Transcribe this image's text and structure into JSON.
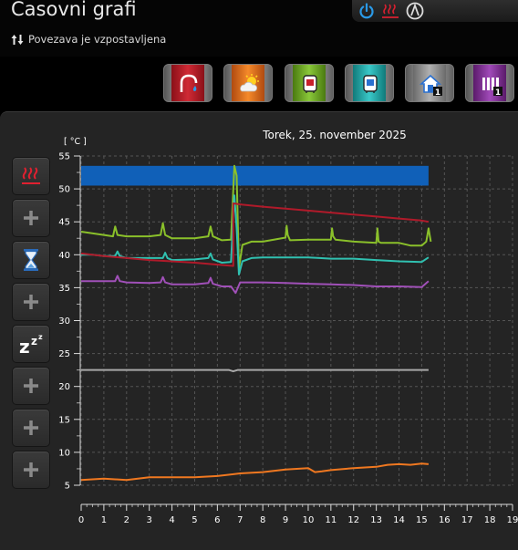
{
  "header": {
    "title": "Časovni grafi",
    "status_text": "Povezava je vzpostavljena"
  },
  "topbar": {
    "icons": [
      "power-icon",
      "heating-icon",
      "mode-icon"
    ]
  },
  "mode_buttons": [
    {
      "name": "dhw-button",
      "icon": "tap-icon",
      "color": "#c8202a"
    },
    {
      "name": "weather-button",
      "icon": "weather-icon",
      "color": "#f07a1a"
    },
    {
      "name": "tank-heating-button",
      "icon": "tank-icon",
      "color": "#7cb82a"
    },
    {
      "name": "tank-cooling-button",
      "icon": "tank-icon",
      "color": "#2ab0b0"
    },
    {
      "name": "house-1-button",
      "icon": "house-icon",
      "color": "#909090",
      "badge": "1"
    },
    {
      "name": "radiator-1-button",
      "icon": "radiator-icon",
      "color": "#8a3a9a",
      "badge": "1"
    }
  ],
  "sidebar": [
    {
      "name": "heating-toggle-button",
      "icon": "heating-icon"
    },
    {
      "name": "add-button-1",
      "icon": "plus-icon"
    },
    {
      "name": "timer-button",
      "icon": "hourglass-icon"
    },
    {
      "name": "add-button-2",
      "icon": "plus-icon"
    },
    {
      "name": "sleep-button",
      "icon": "sleep-icon"
    },
    {
      "name": "add-button-3",
      "icon": "plus-icon"
    },
    {
      "name": "add-button-4",
      "icon": "plus-icon"
    },
    {
      "name": "add-button-5",
      "icon": "plus-icon"
    }
  ],
  "chart_data": {
    "type": "line",
    "title": "Torek, 25. november 2025",
    "ylabel": "[ °C ]",
    "xlabel": "",
    "xlim": [
      0,
      19
    ],
    "ylim": [
      5,
      55
    ],
    "x_ticks": [
      0,
      1,
      2,
      3,
      4,
      5,
      6,
      7,
      8,
      9,
      10,
      11,
      12,
      13,
      14,
      15,
      16,
      17,
      18,
      19
    ],
    "y_ticks": [
      5,
      10,
      15,
      20,
      25,
      30,
      35,
      40,
      45,
      50,
      55
    ],
    "grid": true,
    "band": {
      "from_x": 0,
      "to_x": 15.3,
      "y_low": 50.5,
      "y_high": 53.5,
      "color": "#1060b8"
    },
    "series": [
      {
        "color": "#8ac02a",
        "x": [
          0,
          1,
          1.4,
          1.5,
          1.6,
          2,
          3,
          3.5,
          3.6,
          3.7,
          4,
          5,
          5.6,
          5.7,
          5.8,
          6.2,
          6.6,
          6.75,
          6.85,
          6.95,
          7.1,
          7.5,
          8,
          9,
          9.05,
          9.1,
          9.2,
          10,
          11,
          11.05,
          11.1,
          11.2,
          12,
          13,
          13.05,
          13.1,
          13.2,
          14,
          14.5,
          15,
          15.2,
          15.3,
          15.4
        ],
        "y": [
          43.5,
          43,
          42.8,
          44.3,
          43,
          42.8,
          42.8,
          43,
          44.8,
          43,
          42.5,
          42.5,
          42.8,
          44.3,
          42.8,
          42.2,
          42.3,
          53.5,
          52,
          38,
          41.5,
          42,
          42,
          42.6,
          44.4,
          43,
          42.2,
          42.3,
          42.3,
          44,
          42.8,
          42.3,
          42,
          41.8,
          44,
          42,
          41.8,
          41.8,
          41.4,
          41.4,
          42,
          44,
          42
        ]
      },
      {
        "color": "#30c0b0",
        "x": [
          0,
          0.5,
          1,
          1.5,
          1.6,
          1.7,
          2,
          3,
          3.6,
          3.7,
          3.8,
          4,
          5,
          5.6,
          5.7,
          5.8,
          6.2,
          6.6,
          6.75,
          6.85,
          6.95,
          7.1,
          7.5,
          8,
          9,
          10,
          10.5,
          11,
          12,
          13,
          14,
          15,
          15.3
        ],
        "y": [
          40,
          40,
          39.8,
          39.8,
          40.5,
          39.8,
          39.5,
          39.5,
          39.5,
          40.3,
          39.5,
          39.2,
          39.3,
          39.5,
          40.2,
          39.3,
          38.8,
          38.9,
          49,
          44,
          37,
          39,
          39.5,
          39.6,
          39.6,
          39.6,
          39.5,
          39.4,
          39.4,
          39.2,
          39,
          38.9,
          39.6
        ]
      },
      {
        "color": "#a050b8",
        "x": [
          0,
          1,
          1.5,
          1.6,
          1.7,
          2,
          3,
          3.5,
          3.6,
          3.7,
          4,
          5,
          5.6,
          5.7,
          5.8,
          6.2,
          6.6,
          6.8,
          7,
          7.5,
          8,
          9,
          10,
          11,
          12,
          13,
          14,
          15,
          15.3
        ],
        "y": [
          36,
          36,
          36,
          36.8,
          36,
          35.8,
          35.7,
          35.8,
          36.6,
          35.8,
          35.5,
          35.5,
          35.7,
          36.5,
          35.6,
          35.2,
          35.2,
          34.2,
          35.8,
          35.8,
          35.8,
          35.7,
          35.6,
          35.5,
          35.4,
          35.2,
          35.2,
          35.1,
          36
        ]
      },
      {
        "color": "#b01a2a",
        "x": [
          0,
          1,
          2,
          3,
          4,
          5,
          6,
          6.7,
          6.7,
          7.1,
          8,
          9,
          10,
          11,
          12,
          13,
          14,
          15,
          15.3
        ],
        "y": [
          40.2,
          39.8,
          39.5,
          39.2,
          39,
          38.8,
          38.5,
          38.3,
          47.8,
          47.6,
          47.3,
          47,
          46.7,
          46.4,
          46.1,
          45.8,
          45.5,
          45.2,
          45
        ]
      },
      {
        "color": "#a8a8a8",
        "x": [
          0,
          1,
          2,
          3,
          4,
          5,
          6,
          6.5,
          6.7,
          6.9,
          7,
          8,
          9,
          10,
          11,
          12,
          13,
          14,
          15,
          15.3
        ],
        "y": [
          22.5,
          22.5,
          22.5,
          22.5,
          22.5,
          22.5,
          22.5,
          22.5,
          22.3,
          22.5,
          22.5,
          22.5,
          22.5,
          22.5,
          22.5,
          22.5,
          22.5,
          22.5,
          22.5,
          22.5
        ]
      },
      {
        "color": "#f07820",
        "x": [
          0,
          1,
          2,
          3,
          4,
          5,
          6,
          7,
          8,
          9,
          10,
          10.3,
          10.6,
          11,
          12,
          13,
          13.5,
          14,
          14.5,
          15,
          15.3
        ],
        "y": [
          5.8,
          6,
          5.8,
          6.2,
          6.2,
          6.2,
          6.4,
          6.8,
          7,
          7.4,
          7.6,
          7,
          7.1,
          7.3,
          7.6,
          7.8,
          8.1,
          8.2,
          8.1,
          8.3,
          8.2
        ]
      }
    ]
  }
}
